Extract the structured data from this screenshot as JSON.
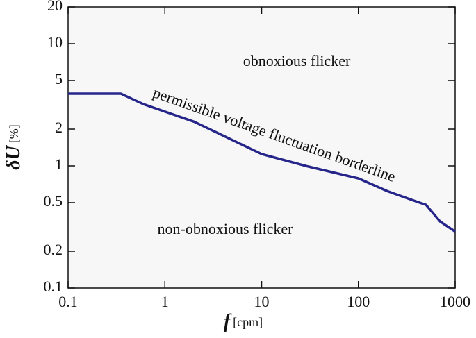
{
  "chart_data": {
    "type": "line",
    "xlabel": {
      "symbol": "f",
      "unit": "[cpm]"
    },
    "ylabel": {
      "symbol": "δU",
      "unit": "[%]"
    },
    "x": [
      0.1,
      0.35,
      0.6,
      2,
      10,
      30,
      100,
      200,
      400,
      500,
      700,
      1000
    ],
    "series": [
      {
        "name": "permissible voltage fluctuation borderline",
        "color": "#26268a",
        "values": [
          3.9,
          3.9,
          3.2,
          2.3,
          1.25,
          0.99,
          0.79,
          0.62,
          0.51,
          0.48,
          0.35,
          0.29
        ]
      }
    ],
    "annotations": [
      {
        "text": "obnoxious flicker",
        "color": "#e0242a"
      },
      {
        "text": "non-obnoxious flicker",
        "color": "#1f9e4e"
      }
    ],
    "xscale": "log",
    "yscale": "log",
    "xlim": [
      0.1,
      1000
    ],
    "ylim": [
      0.1,
      20
    ],
    "xticks": [
      0.1,
      1,
      10,
      100,
      1000
    ],
    "yticks": [
      0.1,
      0.2,
      0.5,
      1,
      2,
      5,
      10,
      20
    ],
    "grid": false
  }
}
